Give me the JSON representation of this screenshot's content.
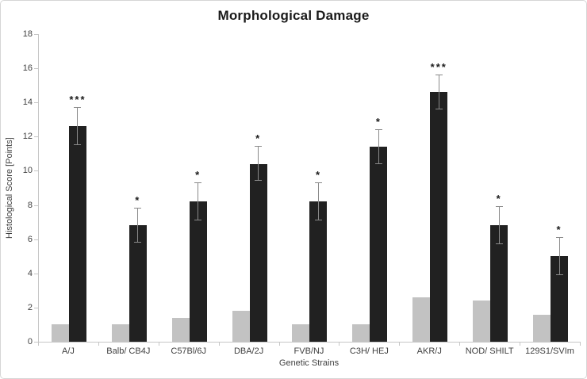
{
  "chart_data": {
    "type": "bar",
    "title": "Morphological Damage",
    "xlabel": "Genetic Strains",
    "ylabel": "Histological Score [Points]",
    "ylim": [
      0,
      18
    ],
    "yticks": [
      0,
      2,
      4,
      6,
      8,
      10,
      12,
      14,
      16,
      18
    ],
    "grid": false,
    "legend_position": "none",
    "categories": [
      "A/J",
      "Balb/ CB4J",
      "C57Bl/6J",
      "DBA/2J",
      "FVB/NJ",
      "C3H/ HEJ",
      "AKR/J",
      "NOD/ SHILT",
      "129S1/SVIm"
    ],
    "series": [
      {
        "name": "gray bars",
        "color": "#c2c2c2",
        "values": [
          1.0,
          1.0,
          1.4,
          1.8,
          1.0,
          1.0,
          2.6,
          2.4,
          1.6
        ]
      },
      {
        "name": "black bars",
        "color": "#212121",
        "values": [
          12.6,
          6.8,
          8.2,
          10.4,
          8.2,
          11.4,
          14.6,
          6.8,
          5.0
        ],
        "error": [
          1.1,
          1.0,
          1.1,
          1.0,
          1.1,
          1.0,
          1.0,
          1.1,
          1.1
        ],
        "significance": [
          "***",
          "*",
          "*",
          "*",
          "*",
          "*",
          "***",
          "*",
          "*"
        ]
      }
    ]
  },
  "colors": {
    "axis": "#c6c6c6",
    "error_bar": "#8a8a8a",
    "text": "#3f3f3f",
    "title_text": "#1a1a1a",
    "frame_border": "#d6d6d6",
    "background": "#ffffff"
  }
}
